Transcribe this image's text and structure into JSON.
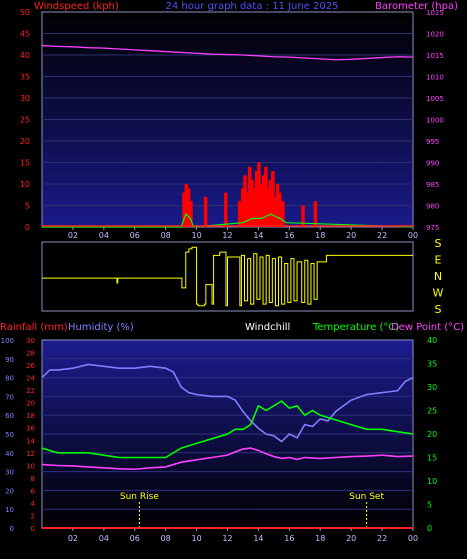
{
  "header": {
    "title": "24 hour graph data : 11 June 2025",
    "left_label": "Windspeed (kph)",
    "right_label": "Barometer (hpa)"
  },
  "bottom_header": {
    "rainfall_label": "Rainfall (mm)",
    "humidity_label": "Humidity (%)",
    "windchill_label": "Windchill",
    "temperature_label": "Temperature (°C)",
    "dewpoint_label": "Dew Point (°C)"
  },
  "compass": [
    "S",
    "E",
    "N",
    "W",
    "S"
  ],
  "x_ticks": [
    "02",
    "04",
    "06",
    "08",
    "10",
    "12",
    "14",
    "16",
    "18",
    "20",
    "22",
    "00"
  ],
  "markers": {
    "sunrise": "Sun Rise",
    "sunset": "Sun Set",
    "sunrise_hour": 6.3,
    "sunset_hour": 21.0
  },
  "colors": {
    "wind": "#ff2020",
    "gust": "#ff0000",
    "pressure": "#ff40ff",
    "direction": "#ffff00",
    "humidity": "#8080ff",
    "temperature": "#00ff00",
    "dewpoint": "#ff40ff",
    "rain": "#ff2020",
    "axis_left": "#ff2020",
    "axis_right": "#ff40ff",
    "axis_temp": "#00ff00"
  },
  "chart_data": [
    {
      "type": "line",
      "name": "wind-barometer",
      "title": "24 hour graph data : 11 June 2025",
      "ylabel": "Windspeed (kph)",
      "y2label": "Barometer (hpa)",
      "ylim": [
        0,
        50
      ],
      "y2lim": [
        975,
        1025
      ],
      "yticks": [
        0,
        5,
        10,
        15,
        20,
        25,
        30,
        35,
        40,
        45,
        50
      ],
      "y2ticks": [
        975,
        980,
        985,
        990,
        995,
        1000,
        1005,
        1010,
        1015,
        1020,
        1025
      ],
      "barometer": {
        "x": [
          0,
          1,
          2,
          3,
          4,
          5,
          6,
          7,
          8,
          9,
          10,
          11,
          12,
          13,
          14,
          15,
          16,
          17,
          18,
          19,
          20,
          21,
          22,
          23,
          24
        ],
        "y": [
          1017.2,
          1017.0,
          1016.9,
          1016.7,
          1016.6,
          1016.4,
          1016.2,
          1016.0,
          1015.8,
          1015.6,
          1015.4,
          1015.2,
          1015.1,
          1015.0,
          1014.8,
          1014.6,
          1014.5,
          1014.3,
          1014.1,
          1013.9,
          1014.0,
          1014.2,
          1014.4,
          1014.6,
          1014.5
        ]
      },
      "gust_bars": [
        {
          "x": 9.2,
          "y": 8
        },
        {
          "x": 9.35,
          "y": 10
        },
        {
          "x": 9.5,
          "y": 9
        },
        {
          "x": 9.65,
          "y": 6
        },
        {
          "x": 10.6,
          "y": 7
        },
        {
          "x": 11.9,
          "y": 8
        },
        {
          "x": 12.8,
          "y": 6
        },
        {
          "x": 13.0,
          "y": 9
        },
        {
          "x": 13.15,
          "y": 12
        },
        {
          "x": 13.3,
          "y": 8
        },
        {
          "x": 13.45,
          "y": 14
        },
        {
          "x": 13.6,
          "y": 11
        },
        {
          "x": 13.75,
          "y": 9
        },
        {
          "x": 13.9,
          "y": 13
        },
        {
          "x": 14.05,
          "y": 15
        },
        {
          "x": 14.2,
          "y": 10
        },
        {
          "x": 14.35,
          "y": 12
        },
        {
          "x": 14.5,
          "y": 14
        },
        {
          "x": 14.65,
          "y": 9
        },
        {
          "x": 14.8,
          "y": 11
        },
        {
          "x": 14.95,
          "y": 13
        },
        {
          "x": 15.1,
          "y": 7
        },
        {
          "x": 15.25,
          "y": 10
        },
        {
          "x": 15.4,
          "y": 8
        },
        {
          "x": 15.6,
          "y": 6
        },
        {
          "x": 16.9,
          "y": 5
        },
        {
          "x": 17.7,
          "y": 6
        }
      ],
      "avg_wind": {
        "x": [
          0,
          9.0,
          9.3,
          9.6,
          9.8,
          13.0,
          13.6,
          14.2,
          14.8,
          15.4,
          15.8,
          24
        ],
        "y": [
          0,
          0,
          3,
          2,
          0,
          1,
          2,
          2,
          3,
          2,
          1,
          0
        ]
      }
    },
    {
      "type": "line",
      "name": "wind-direction",
      "categories": [
        "S",
        "E",
        "N",
        "W",
        "S"
      ],
      "x": [
        0,
        4.8,
        4.85,
        4.9,
        9.0,
        9.05,
        9.3,
        9.5,
        9.7,
        10.0,
        10.1,
        10.5,
        10.6,
        11.0,
        11.1,
        11.5,
        11.9,
        12.0,
        12.8,
        12.9,
        13.1,
        13.3,
        13.5,
        13.7,
        13.9,
        14.1,
        14.3,
        14.5,
        14.7,
        14.9,
        15.1,
        15.3,
        15.5,
        15.7,
        15.9,
        16.1,
        16.3,
        16.5,
        16.8,
        17.0,
        17.2,
        17.4,
        17.6,
        17.8,
        18.3,
        18.4,
        24
      ],
      "y": [
        1.9,
        1.9,
        1.6,
        1.9,
        1.9,
        1.3,
        3.5,
        3.7,
        3.8,
        0.3,
        0.2,
        0.3,
        1.5,
        0.3,
        3.3,
        3.5,
        0.2,
        3.2,
        0.2,
        3.3,
        0.5,
        3.1,
        0.3,
        3.4,
        0.6,
        3.2,
        0.3,
        3.3,
        0.4,
        3.1,
        0.2,
        3.2,
        0.3,
        2.8,
        0.4,
        3.1,
        0.5,
        2.9,
        0.4,
        3.0,
        0.3,
        2.8,
        0.6,
        2.9,
        2.9,
        3.3,
        3.3
      ]
    },
    {
      "type": "line",
      "name": "temperature-humidity",
      "ylabel": "Rainfall (mm)",
      "y2label": "Temperature (°C)",
      "yticks_rain": [
        0,
        2,
        4,
        6,
        8,
        10,
        12,
        14,
        16,
        18,
        20,
        22,
        24,
        26,
        28,
        30
      ],
      "yticks_hum": [
        0,
        10,
        20,
        30,
        40,
        50,
        60,
        70,
        80,
        90,
        100
      ],
      "yticks_temp": [
        0,
        5,
        10,
        15,
        20,
        25,
        30,
        35,
        40
      ],
      "ylim_rain": [
        0,
        30
      ],
      "ylim_hum": [
        0,
        100
      ],
      "ylim_temp": [
        0,
        40
      ],
      "series": [
        {
          "name": "Humidity (%)",
          "x": [
            0,
            0.5,
            1,
            2,
            3,
            4,
            5,
            6,
            7,
            8,
            8.5,
            9,
            9.5,
            10,
            11,
            12,
            12.5,
            13,
            13.5,
            14,
            14.5,
            15,
            15.5,
            16,
            16.5,
            17,
            17.5,
            18,
            18.5,
            19,
            20,
            21,
            22,
            23,
            23.5,
            24
          ],
          "values": [
            80,
            84,
            84,
            85,
            87,
            86,
            85,
            85,
            86,
            85,
            83,
            75,
            72,
            71,
            70,
            70,
            68,
            62,
            57,
            53,
            50,
            49,
            46,
            50,
            48,
            55,
            54,
            58,
            57,
            62,
            68,
            71,
            72,
            73,
            78,
            80
          ]
        },
        {
          "name": "Temperature (°C)",
          "x": [
            0,
            1,
            2,
            3,
            4,
            5,
            6,
            7,
            8,
            9,
            10,
            11,
            12,
            12.5,
            13,
            13.5,
            14,
            14.5,
            15,
            15.5,
            16,
            16.5,
            17,
            17.5,
            18,
            19,
            20,
            21,
            22,
            23,
            24
          ],
          "values": [
            17,
            16,
            16,
            16,
            15.5,
            15,
            15,
            15,
            15,
            17,
            18,
            19,
            20,
            21,
            21,
            22,
            26,
            25,
            26,
            27,
            25.5,
            26,
            24,
            25,
            24,
            23,
            22,
            21,
            21,
            20.5,
            20
          ]
        },
        {
          "name": "Dew Point (°C)",
          "x": [
            0,
            1,
            2,
            3,
            4,
            5,
            6,
            7,
            8,
            9,
            10,
            11,
            12,
            12.5,
            13,
            13.5,
            14,
            14.5,
            15,
            15.5,
            16,
            16.5,
            17,
            18,
            19,
            20,
            21,
            22,
            23,
            24
          ],
          "values": [
            13.5,
            13.3,
            13.2,
            13.0,
            12.8,
            12.6,
            12.5,
            12.8,
            13.0,
            14.0,
            14.5,
            15.0,
            15.5,
            16.2,
            16.8,
            17.0,
            16.5,
            15.8,
            15.2,
            14.8,
            15.0,
            14.6,
            15.0,
            14.8,
            15.0,
            15.2,
            15.3,
            15.5,
            15.2,
            15.3
          ]
        },
        {
          "name": "Rainfall (mm)",
          "x": [
            0,
            24
          ],
          "values": [
            0,
            0
          ]
        }
      ]
    }
  ]
}
